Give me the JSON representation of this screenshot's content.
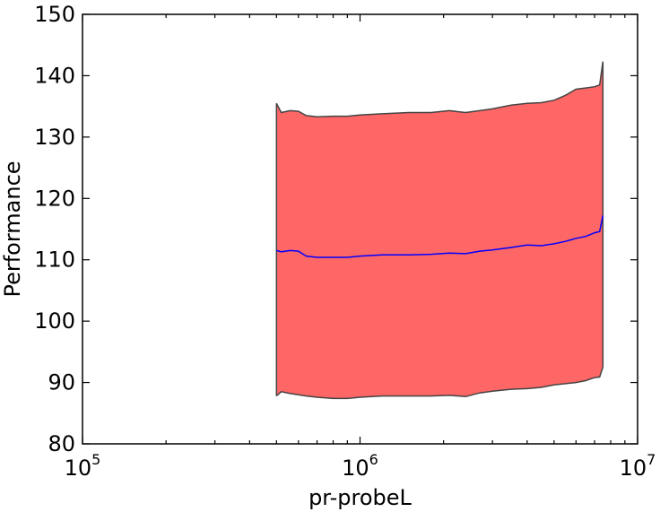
{
  "chart_data": {
    "type": "area",
    "title": "",
    "xlabel": "pr-probeL",
    "ylabel": "Performance",
    "xscale": "log",
    "xlim": [
      100000,
      10000000
    ],
    "ylim": [
      80,
      150
    ],
    "x_ticks": [
      {
        "base": "10",
        "exp": "5",
        "value": 100000
      },
      {
        "base": "10",
        "exp": "6",
        "value": 1000000
      },
      {
        "base": "10",
        "exp": "7",
        "value": 10000000
      }
    ],
    "y_ticks": [
      80,
      90,
      100,
      110,
      120,
      130,
      140,
      150
    ],
    "grid": false,
    "colors": {
      "band": "#ff6666",
      "band_edge": "#444444",
      "mean_line": "#0000ff"
    },
    "x": [
      500000,
      520000,
      560000,
      600000,
      640000,
      700000,
      800000,
      900000,
      1000000,
      1200000,
      1500000,
      1800000,
      2100000,
      2400000,
      2700000,
      3000000,
      3500000,
      4000000,
      4500000,
      5000000,
      5500000,
      6000000,
      6500000,
      7000000,
      7300000,
      7500000
    ],
    "series": [
      {
        "values": [
          111.5,
          111.3,
          111.5,
          111.4,
          110.6,
          110.4,
          110.4,
          110.4,
          110.6,
          110.8,
          110.8,
          110.9,
          111.1,
          111.0,
          111.4,
          111.6,
          112.0,
          112.4,
          112.3,
          112.6,
          113.0,
          113.5,
          113.8,
          114.4,
          114.6,
          117.2
        ]
      },
      {
        "values": [
          135.5,
          134.0,
          134.3,
          134.2,
          133.5,
          133.3,
          133.4,
          133.4,
          133.6,
          133.8,
          134.0,
          134.0,
          134.3,
          134.0,
          134.3,
          134.6,
          135.2,
          135.5,
          135.6,
          136.0,
          136.8,
          137.8,
          138.0,
          138.2,
          138.5,
          142.3
        ]
      },
      {
        "values": [
          87.8,
          88.5,
          88.2,
          88.0,
          87.8,
          87.6,
          87.4,
          87.4,
          87.6,
          87.8,
          87.8,
          87.8,
          87.9,
          87.7,
          88.3,
          88.6,
          88.9,
          89.0,
          89.2,
          89.6,
          89.8,
          90.0,
          90.3,
          90.8,
          90.9,
          92.5
        ]
      }
    ]
  }
}
